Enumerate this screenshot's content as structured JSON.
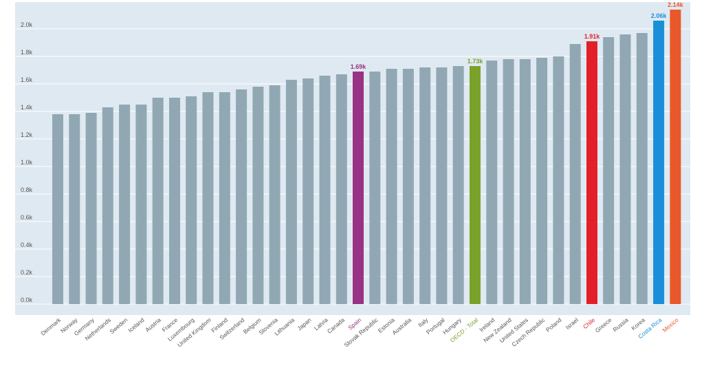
{
  "chart_data": {
    "type": "bar",
    "title": "",
    "xlabel": "",
    "ylabel": "",
    "ylim": [
      0,
      2.1
    ],
    "yticks": [
      0.0,
      0.2,
      0.4,
      0.6,
      0.8,
      1.0,
      1.2,
      1.4,
      1.6,
      1.8,
      2.0
    ],
    "ytick_labels": [
      "0.0k",
      "0.2k",
      "0.4k",
      "0.6k",
      "0.8k",
      "1.0k",
      "1.2k",
      "1.4k",
      "1.6k",
      "1.8k",
      "2.0k"
    ],
    "grid": true,
    "categories": [
      "Denmark",
      "Norway",
      "Germany",
      "Netherlands",
      "Sweden",
      "Iceland",
      "Austria",
      "France",
      "Luxembourg",
      "United Kingdom",
      "Finland",
      "Switzerland",
      "Belgium",
      "Slovenia",
      "Lithuania",
      "Japan",
      "Latvia",
      "Canada",
      "Spain",
      "Slovak Republic",
      "Estonia",
      "Australia",
      "Italy",
      "Portugal",
      "Hungary",
      "OECD - Total",
      "Ireland",
      "New Zealand",
      "United States",
      "Czech Republic",
      "Poland",
      "Israel",
      "Chile",
      "Greece",
      "Russia",
      "Korea",
      "Costa Rica",
      "Mexico"
    ],
    "values": [
      1.38,
      1.38,
      1.39,
      1.43,
      1.45,
      1.45,
      1.5,
      1.5,
      1.51,
      1.54,
      1.54,
      1.56,
      1.58,
      1.59,
      1.63,
      1.64,
      1.66,
      1.67,
      1.69,
      1.69,
      1.71,
      1.71,
      1.72,
      1.72,
      1.73,
      1.73,
      1.77,
      1.78,
      1.78,
      1.79,
      1.8,
      1.89,
      1.91,
      1.94,
      1.96,
      1.97,
      2.06,
      2.14
    ],
    "highlights": [
      {
        "category": "Spain",
        "label": "1.69k",
        "color": "#993284"
      },
      {
        "category": "OECD - Total",
        "label": "1.73k",
        "color": "#7aa22a"
      },
      {
        "category": "Chile",
        "label": "1.91k",
        "color": "#e3202a"
      },
      {
        "category": "Costa Rica",
        "label": "2.06k",
        "color": "#1a8fd9"
      },
      {
        "category": "Mexico",
        "label": "2.14k",
        "color": "#e8582a"
      }
    ],
    "default_color": "#91a8b4"
  }
}
